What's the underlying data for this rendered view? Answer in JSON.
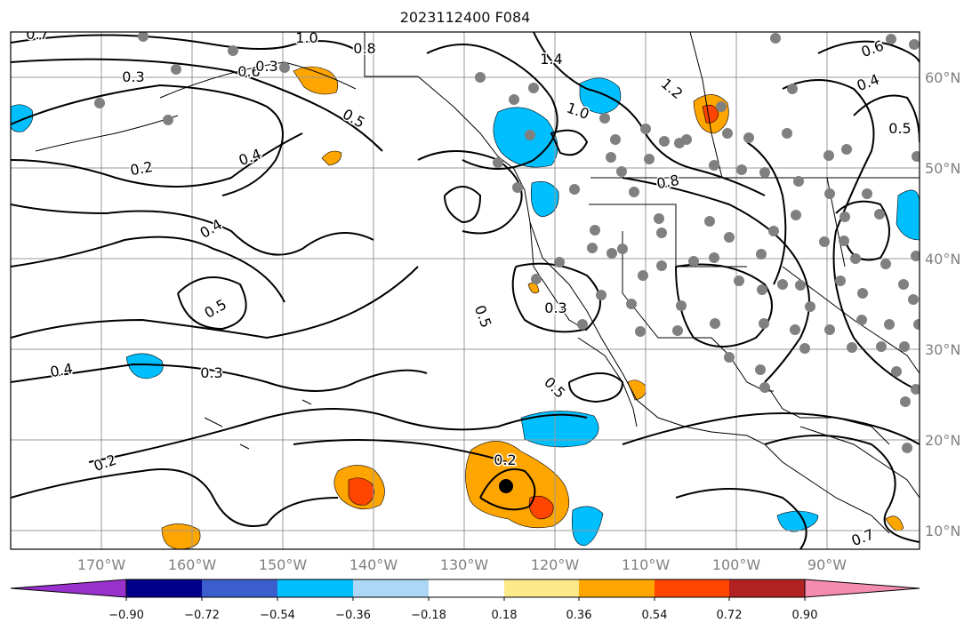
{
  "figure": {
    "title": "2023112400 F084"
  },
  "map": {
    "longitude_labels": [
      "170°W",
      "160°W",
      "150°W",
      "140°W",
      "130°W",
      "120°W",
      "110°W",
      "100°W",
      "90°W"
    ],
    "latitude_labels": [
      "60°N",
      "50°N",
      "40°N",
      "30°N",
      "20°N",
      "10°N"
    ],
    "contour_labels": [
      "0.7",
      "1.0",
      "0.8",
      "1.4",
      "0.3",
      "0.6",
      "0.5",
      "1.0",
      "1.2",
      "0.6",
      "0.4",
      "0.5",
      "0.2",
      "0.4",
      "0.8",
      "0.4",
      "0.5",
      "0.5",
      "0.3",
      "0.4",
      "0.3",
      "0.5",
      "0.2",
      "0.2",
      "0.7",
      "0.3"
    ],
    "feature_marker": "black-dot",
    "colors": {
      "contour": "#000000",
      "grid": "#999999",
      "station": "#808080",
      "coast": "#000000"
    }
  },
  "colorbar": {
    "tick_labels": [
      "−0.90",
      "−0.72",
      "−0.54",
      "−0.36",
      "−0.18",
      "0.18",
      "0.36",
      "0.54",
      "0.72",
      "0.90"
    ],
    "colors": [
      "#9932cc",
      "#00008b",
      "#3a5fcd",
      "#00bfff",
      "#add8f5",
      "#ffffff",
      "#fce98a",
      "#ffa500",
      "#ff4500",
      "#b22222",
      "#f48cb0"
    ]
  }
}
